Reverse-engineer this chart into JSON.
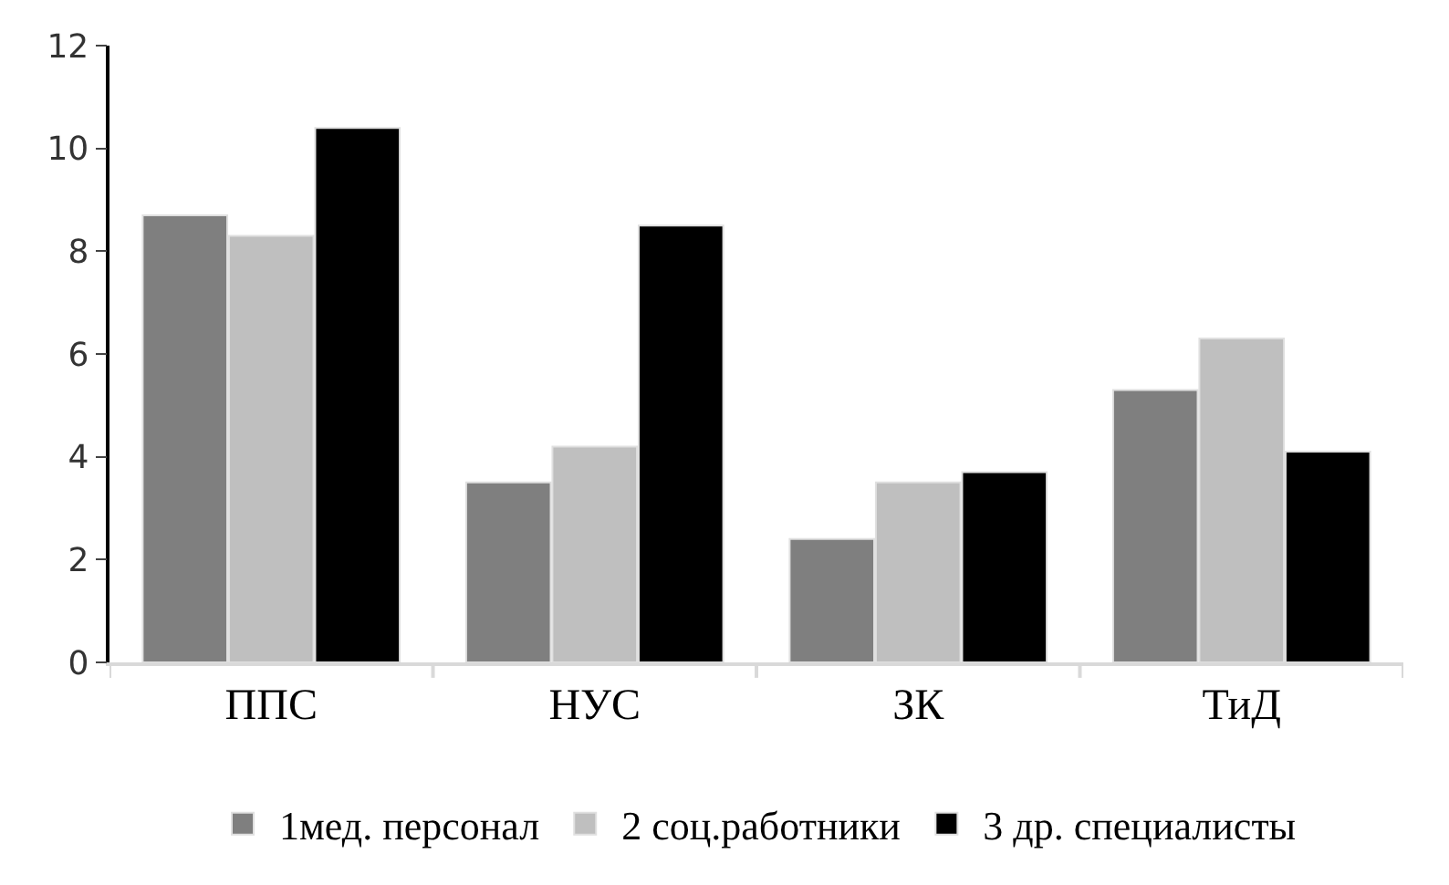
{
  "chart_data": {
    "type": "bar",
    "categories": [
      "ППС",
      "НУС",
      "ЗК",
      "ТиД"
    ],
    "series": [
      {
        "name": "1мед. персонал",
        "color": "#7f7f7f",
        "values": [
          8.7,
          3.5,
          2.4,
          5.3
        ]
      },
      {
        "name": "2 соц.работники",
        "color": "#bfbfbf",
        "values": [
          8.3,
          4.2,
          3.5,
          6.3
        ]
      },
      {
        "name": "3 др. специалисты",
        "color": "#000000",
        "values": [
          10.4,
          8.5,
          3.7,
          4.1
        ]
      }
    ],
    "ylim": [
      0,
      12
    ],
    "yticks": [
      0,
      2,
      4,
      6,
      8,
      10,
      12
    ],
    "grid": false,
    "legend": "bottom"
  }
}
